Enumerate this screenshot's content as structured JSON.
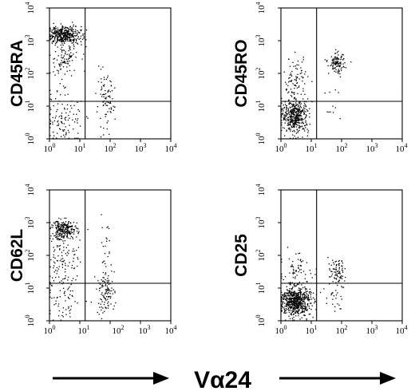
{
  "chart_data": {
    "type": "scatter",
    "scale": "log",
    "xlabel": "Vα24",
    "axis_ticks": [
      {
        "base": "10",
        "exp": "0"
      },
      {
        "base": "10",
        "exp": "1"
      },
      {
        "base": "10",
        "exp": "2"
      },
      {
        "base": "10",
        "exp": "3"
      },
      {
        "base": "10",
        "exp": "4"
      }
    ],
    "panels": [
      {
        "id": "cd45ra",
        "ylabel": "CD45RA",
        "xlim": [
          1,
          10000
        ],
        "ylim": [
          1,
          10000
        ],
        "gate": {
          "x": 15,
          "y": 14
        },
        "clusters": [
          {
            "x": 3,
            "y": 1500,
            "spread_x": 0.28,
            "spread_y": 0.13,
            "n": 380
          },
          {
            "x": 3,
            "y": 300,
            "spread_x": 0.25,
            "spread_y": 0.35,
            "n": 110
          },
          {
            "x": 3,
            "y": 4,
            "spread_x": 0.3,
            "spread_y": 0.4,
            "n": 110
          },
          {
            "x": 70,
            "y": 12,
            "spread_x": 0.15,
            "spread_y": 0.4,
            "n": 85
          }
        ]
      },
      {
        "id": "cd45ro",
        "ylabel": "CD45RO",
        "xlim": [
          1,
          10000
        ],
        "ylim": [
          1,
          10000
        ],
        "gate": {
          "x": 15,
          "y": 14
        },
        "clusters": [
          {
            "x": 3,
            "y": 5,
            "spread_x": 0.22,
            "spread_y": 0.25,
            "n": 430
          },
          {
            "x": 3,
            "y": 60,
            "spread_x": 0.2,
            "spread_y": 0.35,
            "n": 90
          },
          {
            "x": 70,
            "y": 200,
            "spread_x": 0.13,
            "spread_y": 0.15,
            "n": 110
          },
          {
            "x": 60,
            "y": 8,
            "spread_x": 0.15,
            "spread_y": 0.3,
            "n": 12
          }
        ]
      },
      {
        "id": "cd62l",
        "ylabel": "CD62L",
        "xlim": [
          1,
          10000
        ],
        "ylim": [
          1,
          10000
        ],
        "gate": {
          "x": 15,
          "y": 14
        },
        "clusters": [
          {
            "x": 3,
            "y": 600,
            "spread_x": 0.22,
            "spread_y": 0.15,
            "n": 250
          },
          {
            "x": 3,
            "y": 100,
            "spread_x": 0.25,
            "spread_y": 0.35,
            "n": 80
          },
          {
            "x": 3,
            "y": 5,
            "spread_x": 0.3,
            "spread_y": 0.4,
            "n": 80
          },
          {
            "x": 70,
            "y": 8,
            "spread_x": 0.15,
            "spread_y": 0.35,
            "n": 110
          },
          {
            "x": 70,
            "y": 200,
            "spread_x": 0.12,
            "spread_y": 0.4,
            "n": 20
          }
        ]
      },
      {
        "id": "cd25",
        "ylabel": "CD25",
        "xlim": [
          1,
          10000
        ],
        "ylim": [
          1,
          10000
        ],
        "gate": {
          "x": 15,
          "y": 14
        },
        "clusters": [
          {
            "x": 3,
            "y": 4,
            "spread_x": 0.25,
            "spread_y": 0.22,
            "n": 620
          },
          {
            "x": 3,
            "y": 30,
            "spread_x": 0.25,
            "spread_y": 0.3,
            "n": 70
          },
          {
            "x": 70,
            "y": 30,
            "spread_x": 0.14,
            "spread_y": 0.2,
            "n": 80
          },
          {
            "x": 60,
            "y": 5,
            "spread_x": 0.15,
            "spread_y": 0.25,
            "n": 25
          }
        ]
      }
    ]
  }
}
